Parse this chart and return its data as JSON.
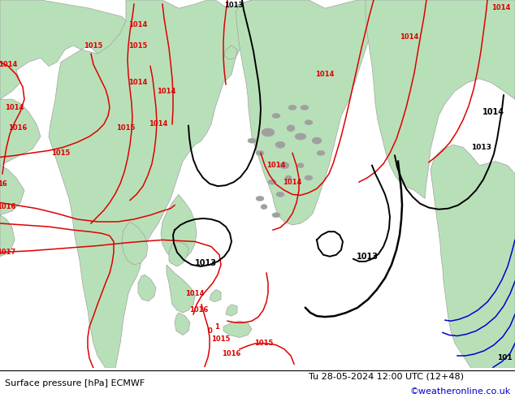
{
  "title_left": "Surface pressure [hPa] ECMWF",
  "title_right": "Tu 28-05-2024 12:00 UTC (12+48)",
  "credit": "©weatheronline.co.uk",
  "sea_color": "#e0e0e0",
  "land_color": "#b8e0b8",
  "fig_width": 6.34,
  "fig_height": 4.9,
  "dpi": 100,
  "credit_color": "#0000cc",
  "font_size_bottom": 8.0,
  "coast_color": "#a0a0a0"
}
